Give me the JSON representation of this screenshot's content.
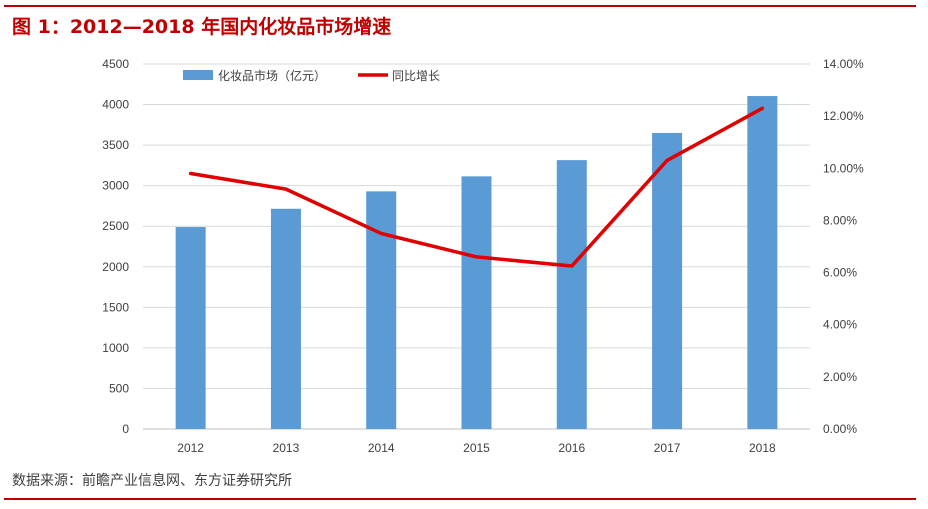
{
  "figure": {
    "title": "图 1：2012—2018 年国内化妆品市场增速",
    "source": "数据来源：前瞻产业信息网、东方证券研究所"
  },
  "colors": {
    "accent": "#c00000",
    "bar": "#5b9bd5",
    "line": "#e00000"
  },
  "chart_data": {
    "type": "bar+line",
    "categories": [
      "2012",
      "2013",
      "2014",
      "2015",
      "2016",
      "2017",
      "2018"
    ],
    "series": [
      {
        "name": "化妆品市场（亿元）",
        "type": "bar",
        "axis": "left",
        "values": [
          2490,
          2715,
          2930,
          3115,
          3315,
          3650,
          4105
        ]
      },
      {
        "name": "同比增长",
        "type": "line",
        "axis": "right",
        "values": [
          9.8,
          9.2,
          7.5,
          6.6,
          6.25,
          10.3,
          12.3
        ]
      }
    ],
    "y_left": {
      "min": 0,
      "max": 4500,
      "step": 500,
      "ticks": [
        "0",
        "500",
        "1000",
        "1500",
        "2000",
        "2500",
        "3000",
        "3500",
        "4000",
        "4500"
      ]
    },
    "y_right": {
      "min": 0,
      "max": 14,
      "step": 2,
      "ticks": [
        "0.00%",
        "2.00%",
        "4.00%",
        "6.00%",
        "8.00%",
        "10.00%",
        "12.00%",
        "14.00%"
      ]
    },
    "grid": "horizontal",
    "legend": "top-left"
  }
}
